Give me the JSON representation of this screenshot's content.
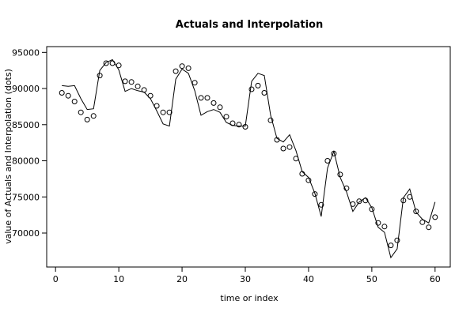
{
  "chart_data": {
    "type": "line",
    "title": "Actuals and Interpolation",
    "xlabel": "time or index",
    "ylabel": "value of Actuals and Interpolation (dots)",
    "xlim": [
      -1.4,
      62.4
    ],
    "ylim": [
      65300,
      95800
    ],
    "xticks": [
      0,
      10,
      20,
      30,
      40,
      50,
      60
    ],
    "yticks": [
      70000,
      75000,
      80000,
      85000,
      90000,
      95000
    ],
    "grid": false,
    "legend": "none",
    "series": [
      {
        "style": "line",
        "x": [
          1,
          2,
          3,
          4,
          5,
          6,
          7,
          8,
          9,
          10,
          11,
          12,
          13,
          14,
          15,
          16,
          17,
          18,
          19,
          20,
          21,
          22,
          23,
          24,
          25,
          26,
          27,
          28,
          29,
          30,
          31,
          32,
          33,
          34,
          35,
          36,
          37,
          38,
          39,
          40,
          41,
          42,
          43,
          44,
          45,
          46,
          47,
          48,
          49,
          50,
          51,
          52,
          53,
          54,
          55,
          56,
          57,
          58,
          59,
          60
        ],
        "y": [
          90400,
          90300,
          90400,
          88600,
          87100,
          87200,
          92500,
          93600,
          94000,
          92600,
          89600,
          90000,
          89700,
          89500,
          88600,
          86900,
          85100,
          84800,
          91300,
          92700,
          92100,
          89700,
          86300,
          86800,
          87100,
          86700,
          85300,
          84900,
          84800,
          84800,
          91000,
          92100,
          91800,
          86300,
          83100,
          82600,
          83600,
          81400,
          78500,
          77700,
          75500,
          72300,
          79000,
          81300,
          77700,
          75700,
          73000,
          74300,
          74900,
          73500,
          70800,
          70100,
          66600,
          67800,
          74900,
          76100,
          72900,
          71900,
          71400,
          74300
        ]
      },
      {
        "style": "points",
        "x": [
          1,
          2,
          3,
          4,
          5,
          6,
          7,
          8,
          9,
          10,
          11,
          12,
          13,
          14,
          15,
          16,
          17,
          18,
          19,
          20,
          21,
          22,
          23,
          24,
          25,
          26,
          27,
          28,
          29,
          30,
          31,
          32,
          33,
          34,
          35,
          36,
          37,
          38,
          39,
          40,
          41,
          42,
          43,
          44,
          45,
          46,
          47,
          48,
          49,
          50,
          51,
          52,
          53,
          54,
          55,
          56,
          57,
          58,
          59,
          60
        ],
        "y": [
          89400,
          89000,
          88200,
          86700,
          85700,
          86200,
          91800,
          93500,
          93500,
          93200,
          91000,
          90900,
          90300,
          89800,
          89000,
          87600,
          86700,
          86700,
          92400,
          93100,
          92800,
          90800,
          88700,
          88700,
          88000,
          87400,
          86100,
          85200,
          85000,
          84700,
          89900,
          90400,
          89400,
          85600,
          82900,
          81700,
          81900,
          80300,
          78200,
          77300,
          75400,
          73900,
          80000,
          81000,
          78100,
          76200,
          74000,
          74400,
          74500,
          73300,
          71400,
          70900,
          68300,
          69000,
          74500,
          75000,
          73000,
          71500,
          70800,
          72200
        ]
      }
    ]
  }
}
